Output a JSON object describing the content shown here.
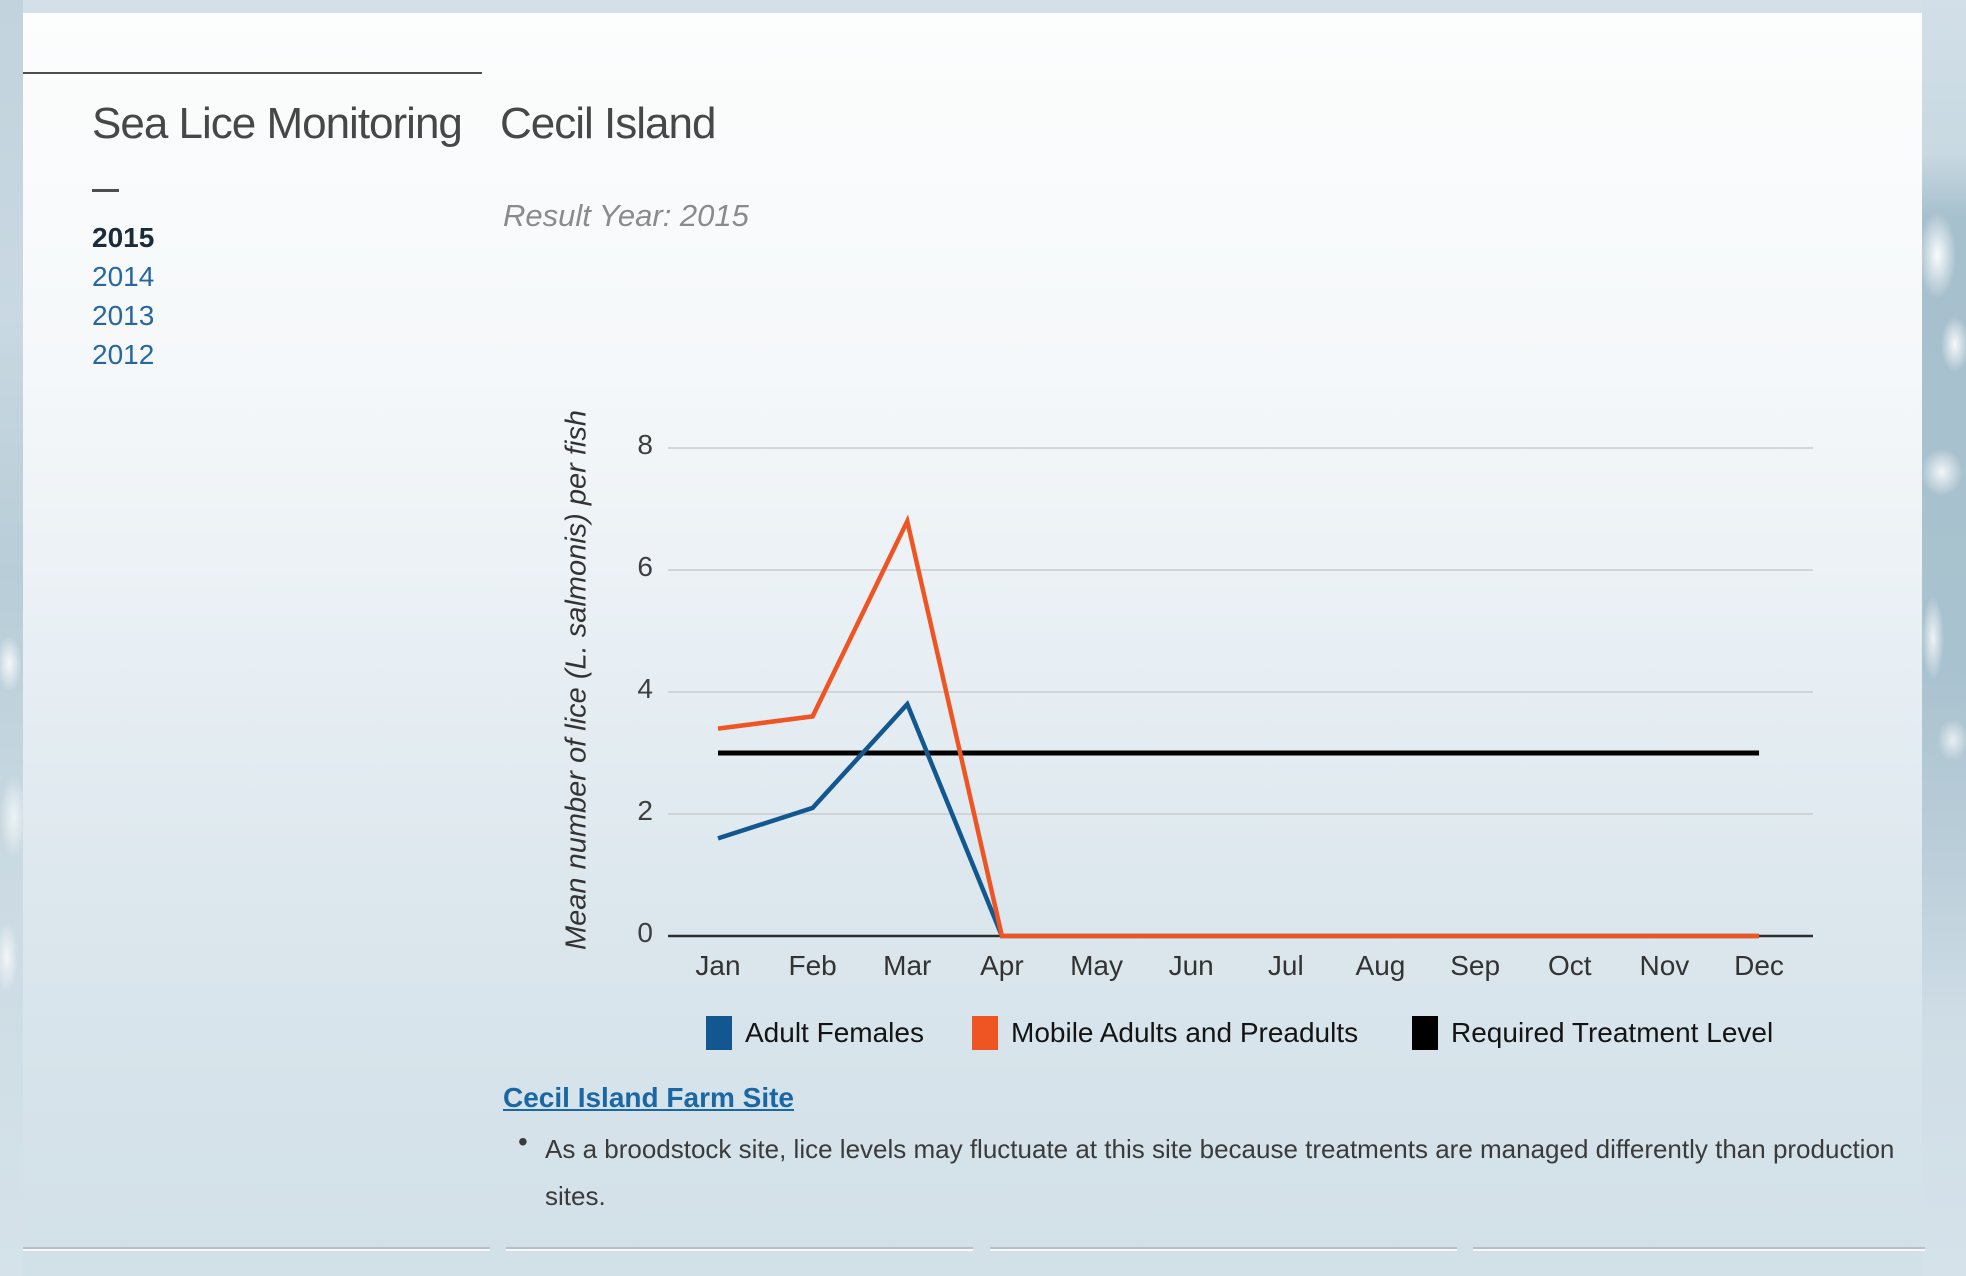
{
  "header": {
    "title_left": "Sea Lice Monitoring",
    "title_right": "Cecil Island",
    "result_year": "Result Year: 2015"
  },
  "sidebar": {
    "years": [
      {
        "label": "2015",
        "active": true
      },
      {
        "label": "2014",
        "active": false
      },
      {
        "label": "2013",
        "active": false
      },
      {
        "label": "2012",
        "active": false
      }
    ]
  },
  "chart_data": {
    "type": "line",
    "title": "",
    "xlabel": "",
    "ylabel": "Mean number of lice (L. salmonis) per fish",
    "categories": [
      "Jan",
      "Feb",
      "Mar",
      "Apr",
      "May",
      "Jun",
      "Jul",
      "Aug",
      "Sep",
      "Oct",
      "Nov",
      "Dec"
    ],
    "ylim": [
      0,
      8
    ],
    "yticks": [
      0,
      2,
      4,
      6,
      8
    ],
    "grid": true,
    "legend_position": "bottom",
    "series": [
      {
        "name": "Adult Females",
        "color": "#12578f",
        "role": "data",
        "values": [
          1.6,
          2.1,
          3.8,
          0,
          0,
          0,
          0,
          0,
          0,
          0,
          0,
          0
        ]
      },
      {
        "name": "Mobile Adults and Preadults",
        "color": "#ef5423",
        "role": "data",
        "values": [
          3.4,
          3.6,
          6.8,
          0,
          0,
          0,
          0,
          0,
          0,
          0,
          0,
          0
        ]
      },
      {
        "name": "Required Treatment Level",
        "color": "#000000",
        "role": "reference",
        "values": [
          3,
          3,
          3,
          3,
          3,
          3,
          3,
          3,
          3,
          3,
          3,
          3
        ]
      }
    ]
  },
  "footer": {
    "bullet_marker": "•",
    "link_label": "Cecil Island Farm Site",
    "bullet_text": "As a broodstock site, lice levels may fluctuate at this site because treatments are managed differently than production sites."
  }
}
